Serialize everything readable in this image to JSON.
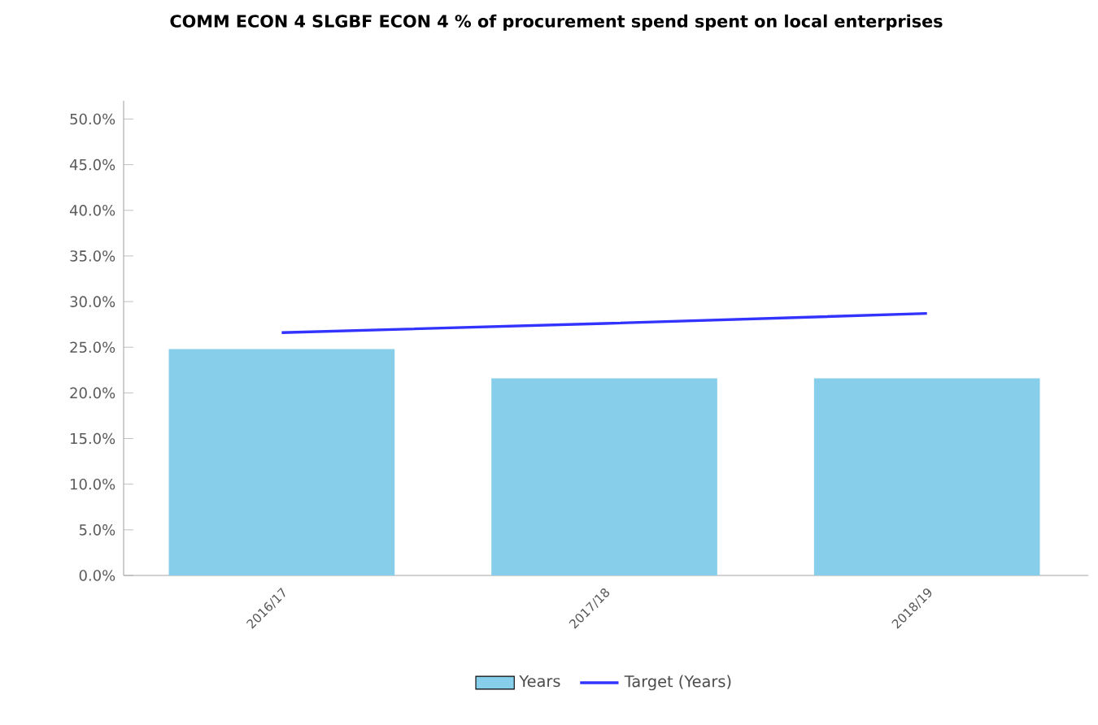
{
  "chart_data": {
    "type": "bar",
    "title": "COMM ECON 4 SLGBF ECON 4 % of procurement spend spent on local enterprises",
    "categories": [
      "2016/17",
      "2017/18",
      "2018/19"
    ],
    "series": [
      {
        "name": "Years",
        "color": "#87ceeb",
        "values": [
          24.8,
          21.6,
          21.6
        ]
      },
      {
        "name": "Target (Years)",
        "type": "line",
        "color": "#3333ff",
        "values": [
          26.6,
          27.6,
          28.7
        ]
      }
    ],
    "ylim": [
      0,
      52
    ],
    "yticks": [
      {
        "value": 0,
        "label": "0.0%"
      },
      {
        "value": 5,
        "label": "5.0%"
      },
      {
        "value": 10,
        "label": "10.0%"
      },
      {
        "value": 15,
        "label": "15.0%"
      },
      {
        "value": 20,
        "label": "20.0%"
      },
      {
        "value": 25,
        "label": "25.0%"
      },
      {
        "value": 30,
        "label": "30.0%"
      },
      {
        "value": 35,
        "label": "35.0%"
      },
      {
        "value": 40,
        "label": "40.0%"
      },
      {
        "value": 45,
        "label": "45.0%"
      },
      {
        "value": 50,
        "label": "50.0%"
      }
    ],
    "legend": "bottom",
    "grid": false,
    "marker": "none"
  }
}
